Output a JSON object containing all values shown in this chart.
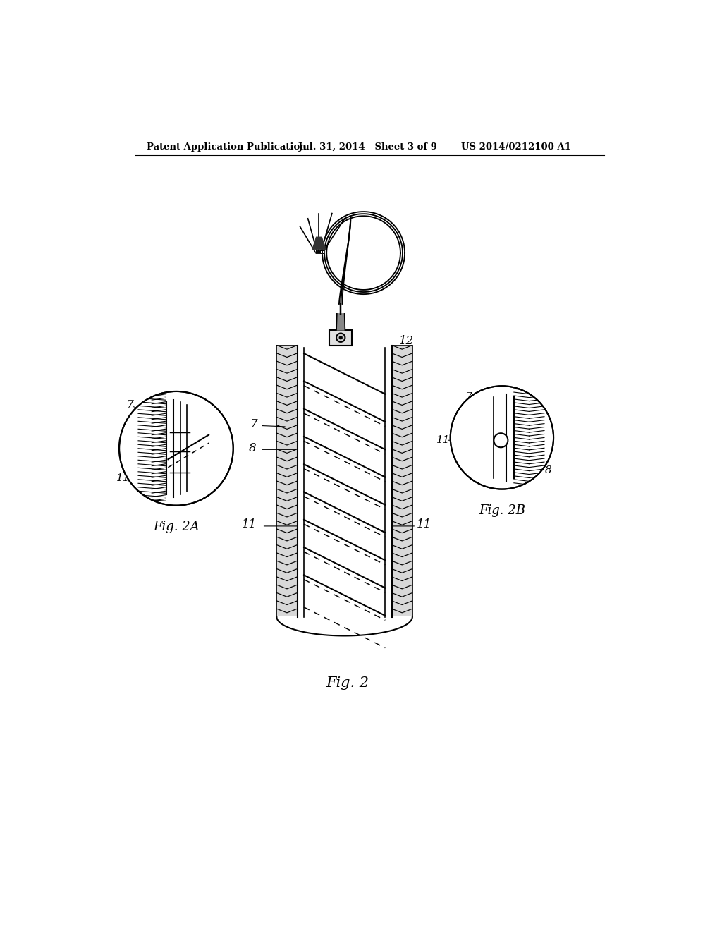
{
  "bg_color": "#ffffff",
  "line_color": "#000000",
  "header_text": "Patent Application Publication",
  "header_date": "Jul. 31, 2014   Sheet 3 of 9",
  "header_patent": "US 2014/0212100 A1",
  "fig_label": "Fig. 2",
  "fig2a_label": "Fig. 2A",
  "fig2b_label": "Fig. 2B"
}
